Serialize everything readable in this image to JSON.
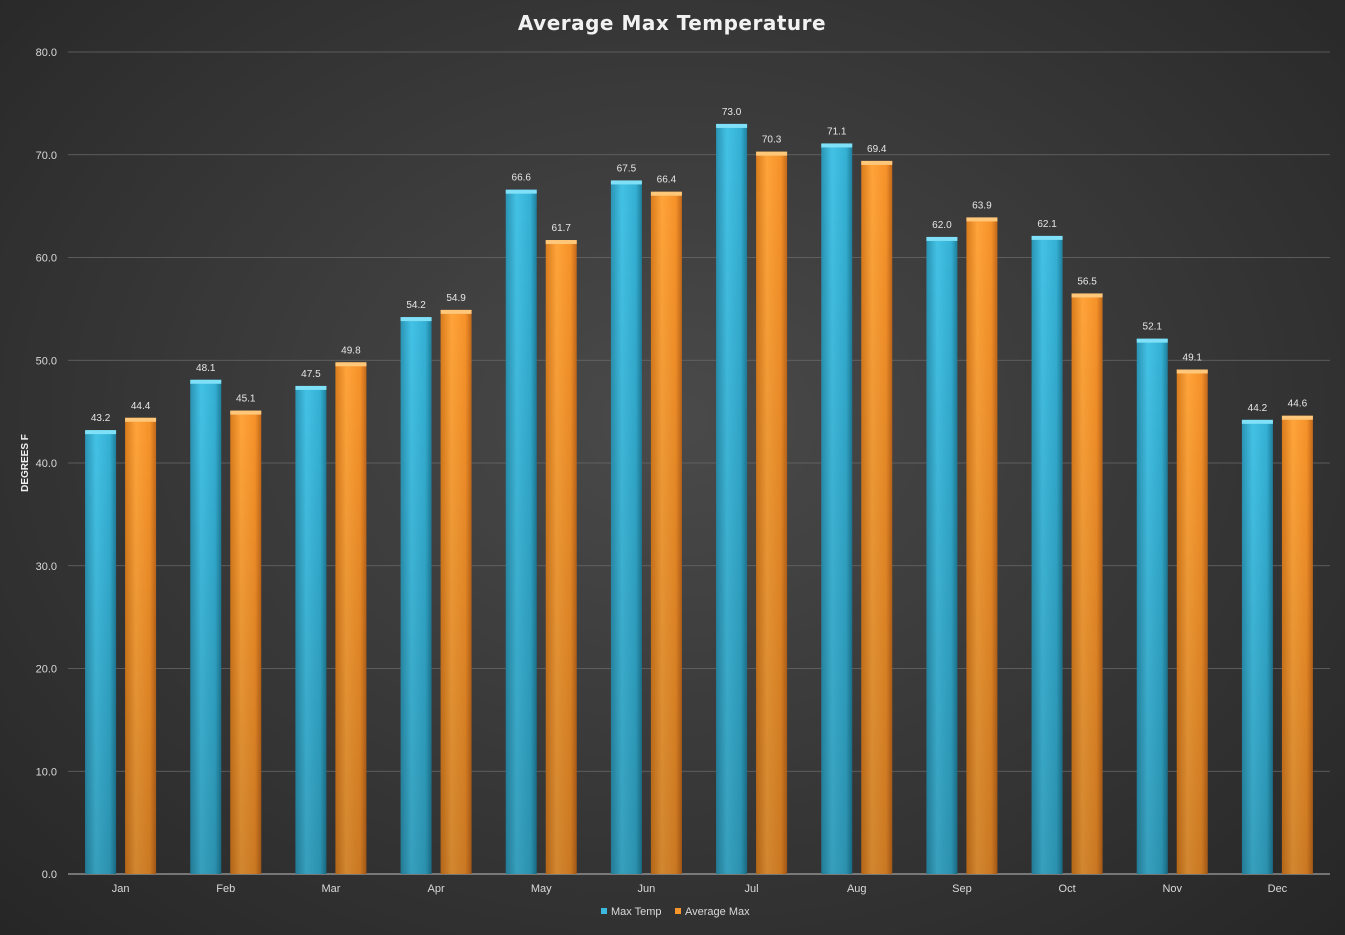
{
  "chart_data": {
    "type": "bar",
    "title": "Average Max Temperature",
    "xlabel": "",
    "ylabel": "DEGREES F",
    "ylim": [
      0,
      80
    ],
    "yticks": [
      "0.0",
      "10.0",
      "20.0",
      "30.0",
      "40.0",
      "50.0",
      "60.0",
      "70.0",
      "80.0"
    ],
    "categories": [
      "Jan",
      "Feb",
      "Mar",
      "Apr",
      "May",
      "Jun",
      "Jul",
      "Aug",
      "Sep",
      "Oct",
      "Nov",
      "Dec"
    ],
    "series": [
      {
        "name": "Max Temp",
        "color": "#3cb9dc",
        "values": [
          43.2,
          48.1,
          47.5,
          54.2,
          66.6,
          67.5,
          73.0,
          71.1,
          62.0,
          62.1,
          52.1,
          44.2
        ],
        "labels": [
          "43.2",
          "48.1",
          "47.5",
          "54.2",
          "66.6",
          "67.5",
          "73.0",
          "71.1",
          "62.0",
          "62.1",
          "52.1",
          "44.2"
        ]
      },
      {
        "name": "Average Max",
        "color": "#f7962b",
        "values": [
          44.4,
          45.1,
          49.8,
          54.9,
          61.7,
          66.4,
          70.3,
          69.4,
          63.9,
          56.5,
          49.1,
          44.6
        ],
        "labels": [
          "44.4",
          "45.1",
          "49.8",
          "54.9",
          "61.7",
          "66.4",
          "70.3",
          "69.4",
          "63.9",
          "56.5",
          "49.1",
          "44.6"
        ]
      }
    ],
    "grid": true,
    "legend": "bottom-center"
  }
}
